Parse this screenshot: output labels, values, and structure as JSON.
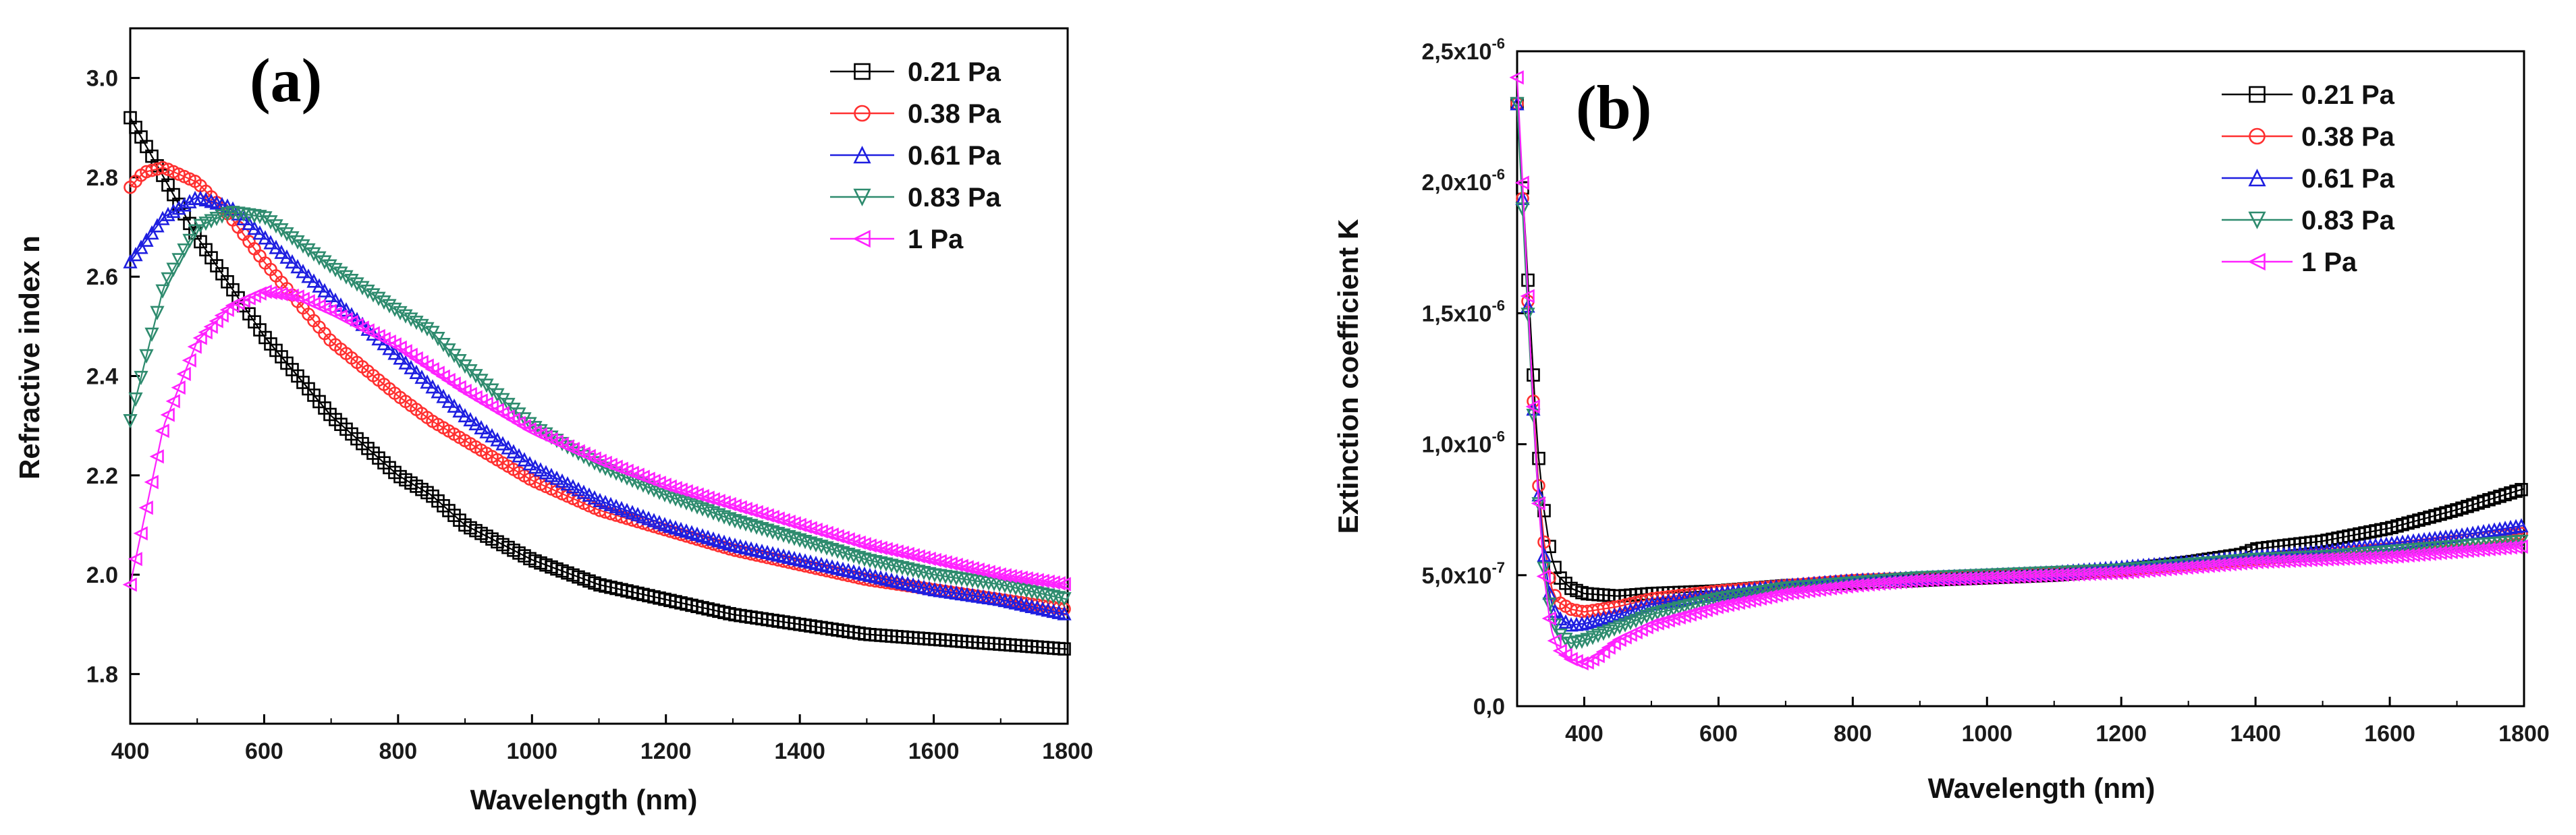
{
  "chart_data": [
    {
      "type": "line",
      "panel_label": "(a)",
      "title": "",
      "xlabel": "Wavelength (nm)",
      "ylabel": "Refractive index n",
      "xlim": [
        400,
        1800
      ],
      "ylim": [
        1.7,
        3.1
      ],
      "xticks": [
        "400",
        "600",
        "800",
        "1000",
        "1200",
        "1400",
        "1600",
        "1800"
      ],
      "yticks": [
        "1.8",
        "2.0",
        "2.2",
        "2.4",
        "2.6",
        "2.8",
        "3.0"
      ],
      "legend_position": "top-right",
      "series": [
        {
          "name": "0.21 Pa",
          "marker": "square",
          "color": "#000000",
          "x": [
            400,
            500,
            600,
            700,
            800,
            850,
            900,
            1000,
            1100,
            1200,
            1300,
            1400,
            1500,
            1600,
            1700,
            1800
          ],
          "y": [
            2.92,
            2.68,
            2.48,
            2.32,
            2.2,
            2.16,
            2.1,
            2.03,
            1.98,
            1.95,
            1.92,
            1.9,
            1.88,
            1.87,
            1.86,
            1.85
          ]
        },
        {
          "name": "0.38 Pa",
          "marker": "circle",
          "color": "#ff3030",
          "x": [
            400,
            420,
            450,
            500,
            550,
            600,
            700,
            800,
            850,
            900,
            1000,
            1100,
            1200,
            1300,
            1400,
            1500,
            1600,
            1700,
            1800
          ],
          "y": [
            2.78,
            2.81,
            2.82,
            2.79,
            2.72,
            2.63,
            2.47,
            2.36,
            2.31,
            2.27,
            2.19,
            2.13,
            2.09,
            2.05,
            2.02,
            1.99,
            1.97,
            1.95,
            1.93
          ]
        },
        {
          "name": "0.61 Pa",
          "marker": "triangle-up",
          "color": "#1e1ee0",
          "x": [
            400,
            450,
            500,
            550,
            600,
            700,
            800,
            850,
            900,
            1000,
            1100,
            1200,
            1300,
            1400,
            1500,
            1600,
            1700,
            1800
          ],
          "y": [
            2.63,
            2.72,
            2.76,
            2.74,
            2.68,
            2.56,
            2.44,
            2.38,
            2.32,
            2.22,
            2.15,
            2.1,
            2.06,
            2.03,
            2.0,
            1.97,
            1.95,
            1.92
          ]
        },
        {
          "name": "0.83 Pa",
          "marker": "triangle-down",
          "color": "#2e8b6e",
          "x": [
            400,
            450,
            500,
            550,
            600,
            650,
            700,
            800,
            850,
            870,
            900,
            1000,
            1100,
            1200,
            1300,
            1400,
            1500,
            1600,
            1700,
            1800
          ],
          "y": [
            2.31,
            2.58,
            2.7,
            2.73,
            2.72,
            2.67,
            2.62,
            2.53,
            2.49,
            2.46,
            2.42,
            2.3,
            2.22,
            2.16,
            2.11,
            2.07,
            2.03,
            2.0,
            1.98,
            1.95
          ]
        },
        {
          "name": "1  Pa",
          "marker": "triangle-left",
          "color": "#ff22ff",
          "x": [
            400,
            450,
            500,
            550,
            600,
            650,
            700,
            800,
            900,
            1000,
            1100,
            1200,
            1300,
            1400,
            1500,
            1600,
            1700,
            1800
          ],
          "y": [
            1.98,
            2.3,
            2.47,
            2.54,
            2.57,
            2.56,
            2.53,
            2.46,
            2.37,
            2.29,
            2.23,
            2.18,
            2.14,
            2.1,
            2.06,
            2.03,
            2.0,
            1.98
          ]
        }
      ]
    },
    {
      "type": "line",
      "panel_label": "(b)",
      "title": "",
      "xlabel": "Wavelength (nm)",
      "ylabel": "Extinction coefficient K",
      "xlim": [
        300,
        1800
      ],
      "ylim": [
        0,
        2.5e-06
      ],
      "xticks": [
        "400",
        "600",
        "800",
        "1000",
        "1200",
        "1400",
        "1600",
        "1800"
      ],
      "yticks": [
        {
          "value": 0,
          "main": "0,0",
          "exp": ""
        },
        {
          "value": 5e-07,
          "main": "5,0x10",
          "exp": "-7"
        },
        {
          "value": 1e-06,
          "main": "1,0x10",
          "exp": "-6"
        },
        {
          "value": 1.5e-06,
          "main": "1,5x10",
          "exp": "-6"
        },
        {
          "value": 2e-06,
          "main": "2,0x10",
          "exp": "-6"
        },
        {
          "value": 2.5e-06,
          "main": "2,5x10",
          "exp": "-6"
        }
      ],
      "legend_position": "top-right",
      "series": [
        {
          "name": "0.21 Pa",
          "marker": "square",
          "color": "#000000",
          "x": [
            300,
            310,
            320,
            330,
            340,
            350,
            360,
            380,
            400,
            450,
            500,
            600,
            700,
            800,
            900,
            1000,
            1100,
            1200,
            1300,
            1380,
            1400,
            1500,
            1600,
            1700,
            1800
          ],
          "y": [
            2.3e-06,
            1.9e-06,
            1.45e-06,
            1e-06,
            7.5e-07,
            5.8e-07,
            5e-07,
            4.5e-07,
            4.3e-07,
            4.2e-07,
            4.3e-07,
            4.4e-07,
            4.6e-07,
            4.7e-07,
            4.8e-07,
            4.9e-07,
            5e-07,
            5.2e-07,
            5.5e-07,
            5.8e-07,
            6e-07,
            6.3e-07,
            6.8e-07,
            7.5e-07,
            8.3e-07
          ]
        },
        {
          "name": "0.38 Pa",
          "marker": "circle",
          "color": "#ff3030",
          "x": [
            300,
            310,
            320,
            330,
            340,
            350,
            360,
            380,
            400,
            450,
            500,
            600,
            700,
            800,
            900,
            1000,
            1100,
            1200,
            1300,
            1400,
            1500,
            1600,
            1700,
            1800
          ],
          "y": [
            2.3e-06,
            1.85e-06,
            1.35e-06,
            9e-07,
            6.3e-07,
            4.6e-07,
            4e-07,
            3.7e-07,
            3.6e-07,
            3.8e-07,
            4.1e-07,
            4.4e-07,
            4.6e-07,
            4.8e-07,
            4.9e-07,
            5e-07,
            5.1e-07,
            5.2e-07,
            5.4e-07,
            5.6e-07,
            5.8e-07,
            6e-07,
            6.3e-07,
            6.6e-07
          ]
        },
        {
          "name": "0.61 Pa",
          "marker": "triangle-up",
          "color": "#1e1ee0",
          "x": [
            300,
            310,
            320,
            330,
            340,
            350,
            360,
            380,
            400,
            450,
            500,
            600,
            700,
            800,
            900,
            1000,
            1100,
            1200,
            1300,
            1400,
            1500,
            1600,
            1700,
            1800
          ],
          "y": [
            2.3e-06,
            1.85e-06,
            1.32e-06,
            8.7e-07,
            5.8e-07,
            4e-07,
            3.4e-07,
            3.1e-07,
            3.15e-07,
            3.5e-07,
            3.9e-07,
            4.3e-07,
            4.6e-07,
            4.8e-07,
            4.9e-07,
            5e-07,
            5.1e-07,
            5.3e-07,
            5.5e-07,
            5.7e-07,
            5.9e-07,
            6.2e-07,
            6.5e-07,
            6.9e-07
          ]
        },
        {
          "name": "0.83 Pa",
          "marker": "triangle-down",
          "color": "#2e8b6e",
          "x": [
            300,
            310,
            320,
            330,
            340,
            350,
            360,
            380,
            400,
            450,
            500,
            600,
            700,
            800,
            900,
            1000,
            1100,
            1200,
            1300,
            1400,
            1500,
            1600,
            1700,
            1800
          ],
          "y": [
            2.3e-06,
            1.8e-06,
            1.3e-06,
            8.4e-07,
            5.3e-07,
            3.6e-07,
            2.8e-07,
            2.4e-07,
            2.5e-07,
            3e-07,
            3.5e-07,
            4.1e-07,
            4.5e-07,
            4.7e-07,
            4.9e-07,
            5e-07,
            5.1e-07,
            5.2e-07,
            5.4e-07,
            5.6e-07,
            5.7e-07,
            5.9e-07,
            6.1e-07,
            6.3e-07
          ]
        },
        {
          "name": "1  Pa",
          "marker": "triangle-left",
          "color": "#ff22ff",
          "x": [
            300,
            310,
            320,
            330,
            340,
            350,
            360,
            380,
            400,
            420,
            450,
            500,
            600,
            700,
            800,
            900,
            1000,
            1100,
            1200,
            1300,
            1400,
            1500,
            1600,
            1700,
            1800
          ],
          "y": [
            2.4e-06,
            1.9e-06,
            1.35e-06,
            8.5e-07,
            5e-07,
            3e-07,
            2.2e-07,
            1.8e-07,
            1.6e-07,
            1.9e-07,
            2.5e-07,
            3.1e-07,
            3.8e-07,
            4.3e-07,
            4.6e-07,
            4.8e-07,
            4.9e-07,
            5e-07,
            5.1e-07,
            5.3e-07,
            5.5e-07,
            5.6e-07,
            5.7e-07,
            5.9e-07,
            6.1e-07
          ]
        }
      ]
    }
  ]
}
